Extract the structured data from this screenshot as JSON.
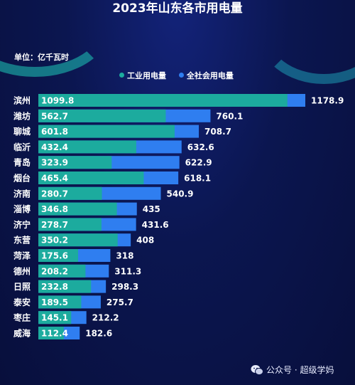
{
  "colors": {
    "industrial": "#1cab9e",
    "total": "#2f7ef0",
    "background": "#0a1448"
  },
  "chart_data": {
    "type": "bar",
    "orientation": "horizontal",
    "title": "2023年山东各市用电量",
    "unit_label": "单位：亿千瓦时",
    "legend_position": "top",
    "categories": [
      "滨州",
      "潍坊",
      "聊城",
      "临沂",
      "青岛",
      "烟台",
      "济南",
      "淄博",
      "济宁",
      "东营",
      "菏泽",
      "德州",
      "日照",
      "泰安",
      "枣庄",
      "威海"
    ],
    "series": [
      {
        "name": "工业用电量",
        "values": [
          1099.8,
          562.7,
          601.8,
          432.4,
          323.9,
          465.4,
          280.7,
          346.8,
          278.7,
          350.2,
          175.6,
          208.2,
          232.8,
          189.5,
          145.1,
          112.4
        ]
      },
      {
        "name": "全社会用电量",
        "values": [
          1178.9,
          760.1,
          708.7,
          632.6,
          622.9,
          618.1,
          540.9,
          435,
          431.6,
          408,
          318,
          311.3,
          298.3,
          275.7,
          212.2,
          182.6
        ]
      }
    ],
    "value_labels": {
      "industrial": [
        "1099.8",
        "562.7",
        "601.8",
        "432.4",
        "323.9",
        "465.4",
        "280.7",
        "346.8",
        "278.7",
        "350.2",
        "175.6",
        "208.2",
        "232.8",
        "189.5",
        "145.1",
        "112.4"
      ],
      "total": [
        "1178.9",
        "760.1",
        "708.7",
        "632.6",
        "622.9",
        "618.1",
        "540.9",
        "435",
        "431.6",
        "408",
        "318",
        "311.3",
        "298.3",
        "275.7",
        "212.2",
        "182.6"
      ]
    },
    "xlim": [
      0,
      1178.9
    ],
    "grid": false
  },
  "watermark": {
    "text": "公众号 · 超级学妈"
  }
}
